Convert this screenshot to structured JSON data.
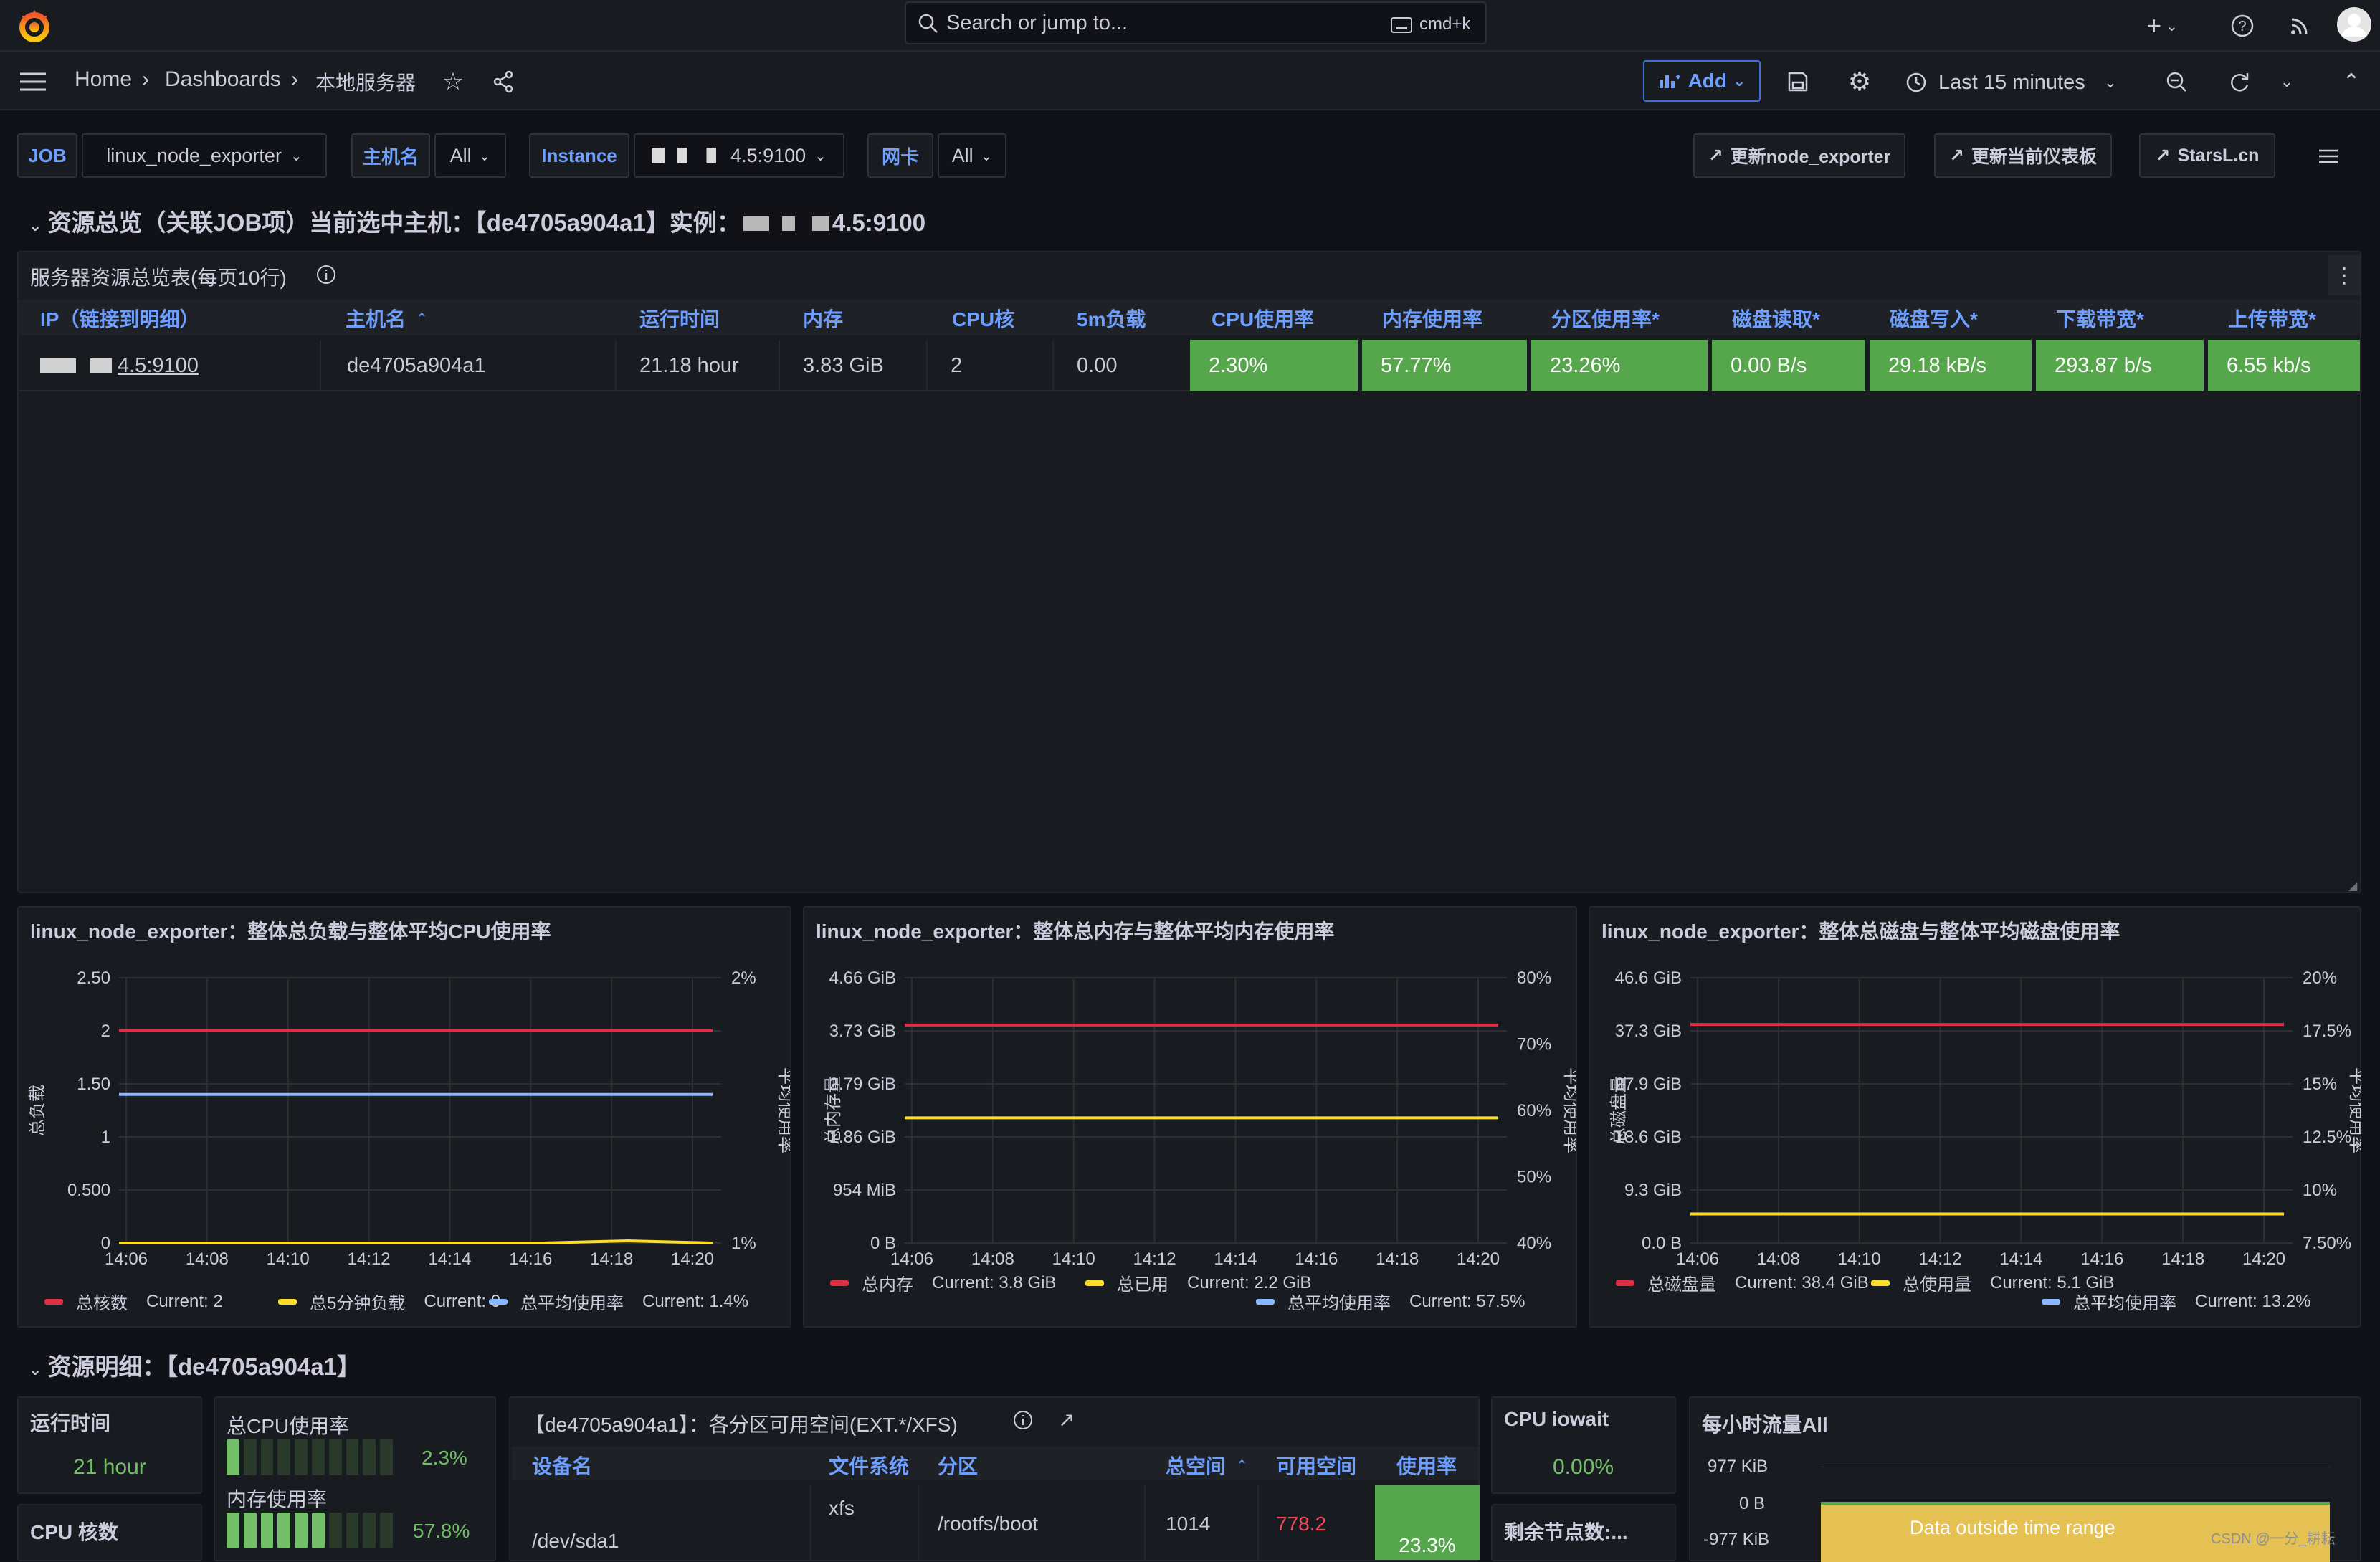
{
  "topbar": {
    "search_placeholder": "Search or jump to...",
    "shortcut": "cmd+k"
  },
  "nav": {
    "breadcrumb": [
      "Home",
      "Dashboards",
      "本地服务器"
    ],
    "add_label": "Add",
    "time_range": "Last 15 minutes"
  },
  "vars": {
    "job_label": "JOB",
    "job_value": "linux_node_exporter",
    "host_label": "主机名",
    "host_value": "All",
    "instance_label": "Instance",
    "instance_value": "4.5:9100",
    "nic_label": "网卡",
    "nic_value": "All"
  },
  "links": {
    "update_exporter": "更新node_exporter",
    "update_dashboard": "更新当前仪表板",
    "starsl": "StarsL.cn"
  },
  "section1": "资源总览（关联JOB项）当前选中主机：【de4705a904a1】实例：",
  "section1_instance": "4.5:9100",
  "table": {
    "title": "服务器资源总览表(每页10行)",
    "headers": [
      "IP（链接到明细）",
      "主机名",
      "运行时间",
      "内存",
      "CPU核",
      "5m负载",
      "CPU使用率",
      "内存使用率",
      "分区使用率*",
      "磁盘读取*",
      "磁盘写入*",
      "下载带宽*",
      "上传带宽*"
    ],
    "row": [
      "4.5:9100",
      "de4705a904a1",
      "21.18 hour",
      "3.83 GiB",
      "2",
      "0.00",
      "2.30%",
      "57.77%",
      "23.26%",
      "0.00 B/s",
      "29.18 kB/s",
      "293.87 b/s",
      "6.55 kb/s"
    ]
  },
  "charts": [
    {
      "title": "linux_node_exporter：整体总负载与整体平均CPU使用率",
      "ylabel": "总负载",
      "y2label": "平均使用率",
      "yticks": [
        "2.50",
        "2",
        "1.50",
        "1",
        "0.500",
        "0"
      ],
      "y2ticks": [
        "2%",
        "1%"
      ],
      "xticks": [
        "14:06",
        "14:08",
        "14:10",
        "14:12",
        "14:14",
        "14:16",
        "14:18",
        "14:20"
      ],
      "legend": [
        {
          "name": "总核数",
          "current": "Current: 2",
          "color": "#e02f44"
        },
        {
          "name": "总5分钟负载",
          "current": "Current: 0",
          "color": "#fade2a"
        },
        {
          "name": "总平均使用率",
          "current": "Current: 1.4%",
          "color": "#8ab8ff"
        }
      ]
    },
    {
      "title": "linux_node_exporter：整体总内存与整体平均内存使用率",
      "ylabel": "总内存量",
      "y2label": "平均使用率",
      "yticks": [
        "4.66 GiB",
        "3.73 GiB",
        "2.79 GiB",
        "1.86 GiB",
        "954 MiB",
        "0 B"
      ],
      "y2ticks": [
        "80%",
        "70%",
        "60%",
        "50%",
        "40%"
      ],
      "xticks": [
        "14:06",
        "14:08",
        "14:10",
        "14:12",
        "14:14",
        "14:16",
        "14:18",
        "14:20"
      ],
      "legend": [
        {
          "name": "总内存",
          "current": "Current: 3.8 GiB",
          "color": "#e02f44"
        },
        {
          "name": "总已用",
          "current": "Current: 2.2 GiB",
          "color": "#fade2a"
        },
        {
          "name": "总平均使用率",
          "current": "Current: 57.5%",
          "color": "#8ab8ff"
        }
      ]
    },
    {
      "title": "linux_node_exporter：整体总磁盘与整体平均磁盘使用率",
      "ylabel": "总磁盘量",
      "y2label": "平均使用率",
      "yticks": [
        "46.6 GiB",
        "37.3 GiB",
        "27.9 GiB",
        "18.6 GiB",
        "9.3 GiB",
        "0.0 B"
      ],
      "y2ticks": [
        "20%",
        "17.5%",
        "15%",
        "12.5%",
        "10%",
        "7.50%"
      ],
      "xticks": [
        "14:06",
        "14:08",
        "14:10",
        "14:12",
        "14:14",
        "14:16",
        "14:18",
        "14:20"
      ],
      "legend": [
        {
          "name": "总磁盘量",
          "current": "Current: 38.4 GiB",
          "color": "#e02f44"
        },
        {
          "name": "总使用量",
          "current": "Current: 5.1 GiB",
          "color": "#fade2a"
        },
        {
          "name": "总平均使用率",
          "current": "Current: 13.2%",
          "color": "#8ab8ff"
        }
      ]
    }
  ],
  "chart_data": [
    {
      "type": "line",
      "title": "linux_node_exporter：整体总负载与整体平均CPU使用率",
      "x": [
        "14:06",
        "14:08",
        "14:10",
        "14:12",
        "14:14",
        "14:16",
        "14:18",
        "14:20"
      ],
      "ylim": [
        0,
        2.5
      ],
      "y2lim": [
        1,
        2
      ],
      "series": [
        {
          "name": "总核数",
          "values": [
            2,
            2,
            2,
            2,
            2,
            2,
            2,
            2
          ]
        },
        {
          "name": "总5分钟负载",
          "values": [
            0,
            0,
            0,
            0,
            0,
            0,
            0.02,
            0
          ]
        },
        {
          "name": "总平均使用率",
          "values": [
            1.4,
            1.4,
            1.4,
            1.4,
            1.4,
            1.4,
            1.4,
            1.4
          ]
        }
      ]
    },
    {
      "type": "line",
      "title": "linux_node_exporter：整体总内存与整体平均内存使用率",
      "x": [
        "14:06",
        "14:08",
        "14:10",
        "14:12",
        "14:14",
        "14:16",
        "14:18",
        "14:20"
      ],
      "ylim": [
        0,
        4.66
      ],
      "series": [
        {
          "name": "总内存",
          "values": [
            3.83,
            3.83,
            3.83,
            3.83,
            3.83,
            3.83,
            3.83,
            3.83
          ]
        },
        {
          "name": "总已用",
          "values": [
            2.2,
            2.2,
            2.2,
            2.2,
            2.2,
            2.2,
            2.2,
            2.2
          ]
        }
      ]
    },
    {
      "type": "line",
      "title": "linux_node_exporter：整体总磁盘与整体平均磁盘使用率",
      "x": [
        "14:06",
        "14:08",
        "14:10",
        "14:12",
        "14:14",
        "14:16",
        "14:18",
        "14:20"
      ],
      "ylim": [
        0,
        46.6
      ],
      "series": [
        {
          "name": "总磁盘量",
          "values": [
            38.4,
            38.4,
            38.4,
            38.4,
            38.4,
            38.4,
            38.4,
            38.4
          ]
        },
        {
          "name": "总使用量",
          "values": [
            5.1,
            5.1,
            5.1,
            5.1,
            5.1,
            5.1,
            5.1,
            5.1
          ]
        }
      ]
    }
  ],
  "section2": "资源明细：【de4705a904a1】",
  "detail": {
    "uptime_label": "运行时间",
    "uptime_value": "21 hour",
    "cpu_cores_label": "CPU 核数",
    "cpu_usage_label": "总CPU使用率",
    "cpu_usage_value": "2.3%",
    "mem_usage_label": "内存使用率",
    "mem_usage_value": "57.8%",
    "cpu_usage_fraction": 0.023,
    "mem_usage_fraction": 0.578,
    "partition_title": "【de4705a904a1】：各分区可用空间(EXT.*/XFS)",
    "partition_headers": [
      "设备名",
      "文件系统",
      "分区",
      "总空间",
      "可用空间",
      "使用率"
    ],
    "partition_row": [
      "/dev/sda1",
      "xfs",
      "/rootfs/boot",
      "1014",
      "778.2",
      "23.3%"
    ],
    "iowait_label": "CPU iowait",
    "iowait_value": "0.00%",
    "inodes_label": "剩余节点数:...",
    "traffic_title": "每小时流量All",
    "traffic_yticks": [
      "977 KiB",
      "0 B",
      "-977 KiB"
    ],
    "traffic_note": "Data outside time range"
  },
  "watermark": "CSDN @一分_耕耘"
}
